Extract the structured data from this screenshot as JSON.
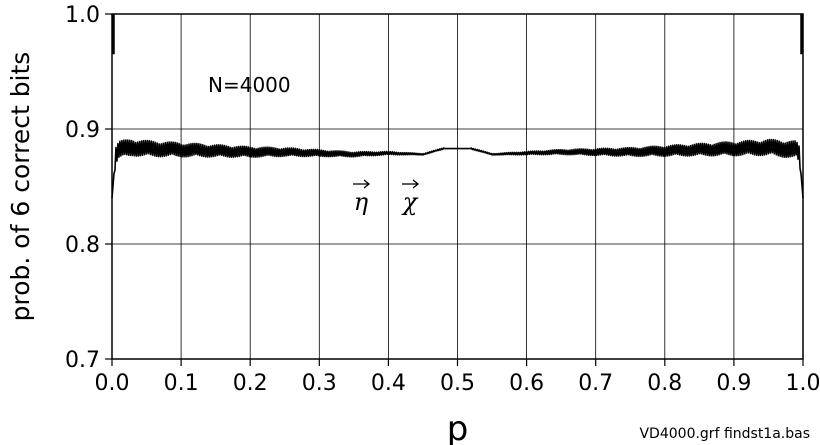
{
  "chart_data": {
    "type": "line",
    "title": "",
    "xlabel": "p",
    "ylabel": "prob. of 6 correct bits",
    "xlim": [
      0.0,
      1.0
    ],
    "ylim": [
      0.7,
      1.0
    ],
    "x_ticks": [
      "0.0",
      "0.1",
      "0.2",
      "0.3",
      "0.4",
      "0.5",
      "0.6",
      "0.7",
      "0.8",
      "0.9",
      "1.0"
    ],
    "y_ticks": [
      "0.7",
      "0.8",
      "0.9",
      "1.0"
    ],
    "grid": true,
    "annotation": "N=4000",
    "series_labels": [
      "η",
      "χ"
    ],
    "footer": "VD4000.grf  findst1a.bas",
    "series": [
      {
        "x": [
          0.0,
          0.005,
          0.01,
          0.03,
          0.05,
          0.1,
          0.15,
          0.2,
          0.25,
          0.3,
          0.35,
          0.4,
          0.45,
          0.48,
          0.5,
          0.52,
          0.55,
          0.6,
          0.65,
          0.7,
          0.75,
          0.8,
          0.85,
          0.9,
          0.95,
          0.99,
          0.995,
          1.0
        ],
        "y": [
          0.84,
          0.877,
          0.882,
          0.884,
          0.883,
          0.882,
          0.881,
          0.88,
          0.88,
          0.879,
          0.878,
          0.879,
          0.878,
          0.883,
          0.883,
          0.883,
          0.878,
          0.879,
          0.88,
          0.88,
          0.88,
          0.881,
          0.882,
          0.883,
          0.884,
          0.882,
          0.877,
          0.84
        ]
      }
    ]
  }
}
